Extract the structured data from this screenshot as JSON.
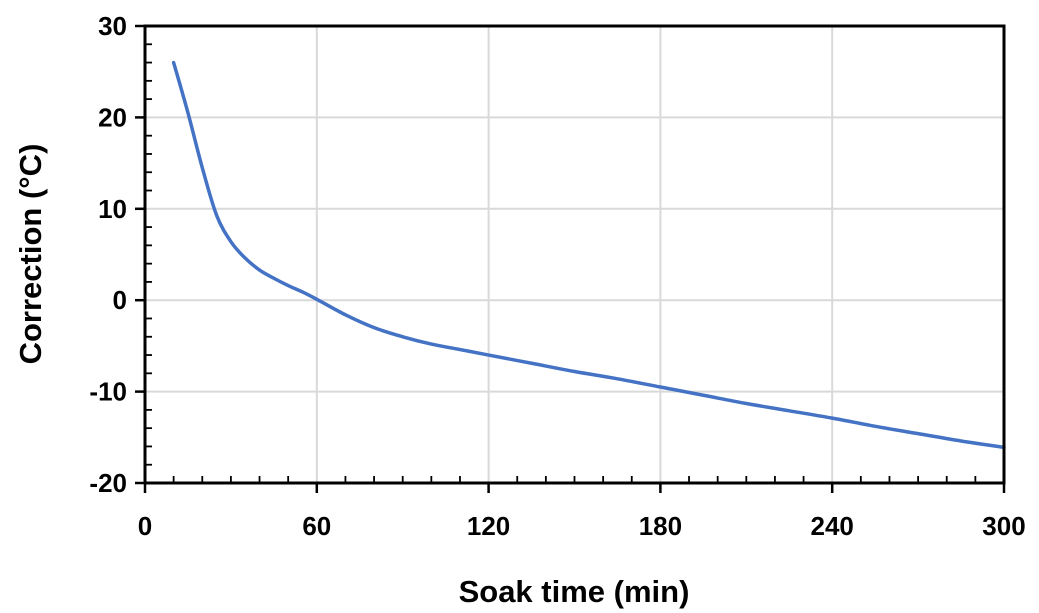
{
  "chart_data": {
    "type": "line",
    "title": "",
    "xlabel": "Soak time (min)",
    "ylabel": "Correction (°C)",
    "xlim": [
      0,
      300
    ],
    "ylim": [
      -20,
      30
    ],
    "xticks": [
      0,
      60,
      120,
      180,
      240,
      300
    ],
    "yticks": [
      30,
      20,
      10,
      0,
      -10,
      -20
    ],
    "grid": true,
    "legend": "none",
    "series": [
      {
        "color": "#4472C4",
        "x": [
          10,
          15,
          20,
          25,
          30,
          35,
          40,
          45,
          50,
          55,
          60,
          70,
          80,
          90,
          100,
          110,
          120,
          135,
          150,
          165,
          180,
          195,
          210,
          225,
          240,
          255,
          270,
          285,
          300
        ],
        "y": [
          26,
          20.5,
          14.5,
          9.3,
          6.4,
          4.6,
          3.3,
          2.4,
          1.6,
          0.9,
          0.1,
          -1.6,
          -3.0,
          -4.0,
          -4.8,
          -5.4,
          -6.0,
          -6.9,
          -7.8,
          -8.6,
          -9.5,
          -10.4,
          -11.3,
          -12.1,
          -12.9,
          -13.8,
          -14.6,
          -15.4,
          -16.1
        ]
      }
    ]
  }
}
